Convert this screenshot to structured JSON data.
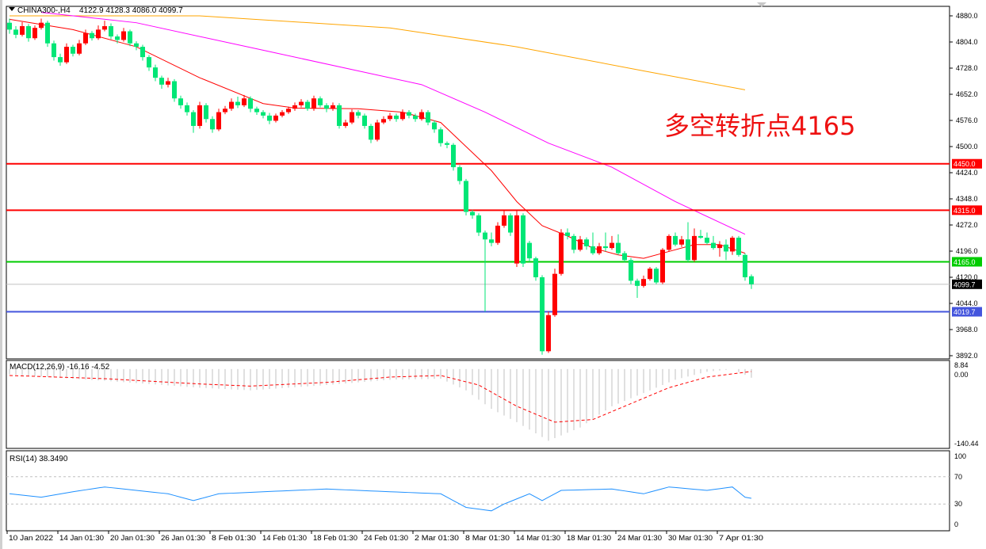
{
  "chart_data": {
    "type": "candlestick",
    "symbol_header": "CHINA300-,H4",
    "ohlc_header": "4122.9 4128.3 4086.0 4099.7",
    "annotation": "多空转折点4165",
    "colors": {
      "up": "#ff0000",
      "down": "#00e676",
      "ma_fast": "#ff0000",
      "ma_mid": "#ff00ff",
      "ma_slow": "#ffa500",
      "macd_hist": "#c0c0c0",
      "macd_signal": "#ff0000",
      "rsi": "#1e90ff"
    },
    "price_axis": {
      "ticks": [
        4880,
        4804,
        4728,
        4652,
        4576,
        4500,
        4424,
        4348,
        4272,
        4196,
        4120,
        4044,
        3968,
        3892
      ],
      "range": [
        3892,
        4880
      ]
    },
    "levels": [
      {
        "price": 4450.0,
        "label": "4450.0",
        "color": "#ff0000"
      },
      {
        "price": 4315.0,
        "label": "4315.0",
        "color": "#ff0000"
      },
      {
        "price": 4165.0,
        "label": "4165.0",
        "color": "#00cc00"
      },
      {
        "price": 4099.7,
        "label": "4099.7",
        "color": "#c0c0c0",
        "tag_color": "#000000"
      },
      {
        "price": 4019.7,
        "label": "4019.7",
        "color": "#4455dd"
      }
    ],
    "time_labels": [
      "10 Jan 2022",
      "14 Jan 01:30",
      "20 Jan 01:30",
      "26 Jan 01:30",
      "8 Feb 01:30",
      "14 Feb 01:30",
      "18 Feb 01:30",
      "24 Feb 01:30",
      "2 Mar 01:30",
      "8 Mar 01:30",
      "14 Mar 01:30",
      "18 Mar 01:30",
      "24 Mar 01:30",
      "30 Mar 01:30",
      "7 Apr 01:30"
    ],
    "candles": [
      [
        4860,
        4872,
        4828,
        4840
      ],
      [
        4840,
        4850,
        4815,
        4825
      ],
      [
        4825,
        4862,
        4820,
        4850
      ],
      [
        4850,
        4856,
        4805,
        4815
      ],
      [
        4815,
        4852,
        4810,
        4845
      ],
      [
        4845,
        4872,
        4840,
        4860
      ],
      [
        4860,
        4866,
        4790,
        4800
      ],
      [
        4800,
        4808,
        4750,
        4760
      ],
      [
        4760,
        4770,
        4735,
        4745
      ],
      [
        4745,
        4800,
        4740,
        4790
      ],
      [
        4790,
        4796,
        4762,
        4770
      ],
      [
        4770,
        4810,
        4765,
        4800
      ],
      [
        4800,
        4840,
        4795,
        4830
      ],
      [
        4830,
        4836,
        4808,
        4815
      ],
      [
        4815,
        4852,
        4810,
        4840
      ],
      [
        4840,
        4866,
        4835,
        4850
      ],
      [
        4850,
        4858,
        4812,
        4820
      ],
      [
        4820,
        4826,
        4800,
        4810
      ],
      [
        4810,
        4845,
        4805,
        4835
      ],
      [
        4835,
        4840,
        4792,
        4800
      ],
      [
        4800,
        4806,
        4780,
        4790
      ],
      [
        4790,
        4796,
        4750,
        4760
      ],
      [
        4760,
        4766,
        4720,
        4730
      ],
      [
        4730,
        4738,
        4690,
        4700
      ],
      [
        4700,
        4706,
        4668,
        4680
      ],
      [
        4680,
        4700,
        4672,
        4690
      ],
      [
        4690,
        4696,
        4630,
        4640
      ],
      [
        4640,
        4648,
        4610,
        4620
      ],
      [
        4620,
        4628,
        4590,
        4600
      ],
      [
        4600,
        4606,
        4540,
        4560
      ],
      [
        4560,
        4630,
        4552,
        4620
      ],
      [
        4620,
        4626,
        4570,
        4580
      ],
      [
        4580,
        4588,
        4540,
        4550
      ],
      [
        4550,
        4610,
        4545,
        4600
      ],
      [
        4600,
        4618,
        4594,
        4610
      ],
      [
        4610,
        4640,
        4604,
        4630
      ],
      [
        4630,
        4645,
        4612,
        4620
      ],
      [
        4620,
        4650,
        4615,
        4640
      ],
      [
        4640,
        4646,
        4600,
        4610
      ],
      [
        4610,
        4616,
        4592,
        4600
      ],
      [
        4600,
        4606,
        4582,
        4590
      ],
      [
        4590,
        4598,
        4565,
        4575
      ],
      [
        4575,
        4596,
        4570,
        4590
      ],
      [
        4590,
        4606,
        4585,
        4600
      ],
      [
        4600,
        4616,
        4595,
        4610
      ],
      [
        4610,
        4628,
        4604,
        4620
      ],
      [
        4620,
        4638,
        4614,
        4630
      ],
      [
        4630,
        4636,
        4604,
        4610
      ],
      [
        4610,
        4648,
        4604,
        4640
      ],
      [
        4640,
        4646,
        4614,
        4620
      ],
      [
        4620,
        4626,
        4600,
        4610
      ],
      [
        4610,
        4628,
        4604,
        4620
      ],
      [
        4620,
        4626,
        4552,
        4560
      ],
      [
        4560,
        4578,
        4554,
        4570
      ],
      [
        4570,
        4608,
        4565,
        4600
      ],
      [
        4600,
        4606,
        4582,
        4590
      ],
      [
        4590,
        4596,
        4552,
        4560
      ],
      [
        4560,
        4566,
        4510,
        4520
      ],
      [
        4520,
        4578,
        4515,
        4570
      ],
      [
        4570,
        4588,
        4565,
        4580
      ],
      [
        4580,
        4598,
        4574,
        4590
      ],
      [
        4590,
        4596,
        4572,
        4580
      ],
      [
        4580,
        4608,
        4575,
        4600
      ],
      [
        4600,
        4606,
        4582,
        4590
      ],
      [
        4590,
        4596,
        4572,
        4580
      ],
      [
        4580,
        4608,
        4575,
        4600
      ],
      [
        4600,
        4606,
        4562,
        4570
      ],
      [
        4570,
        4576,
        4540,
        4550
      ],
      [
        4550,
        4556,
        4500,
        4510
      ],
      [
        4510,
        4515,
        4495,
        4505
      ],
      [
        4505,
        4510,
        4430,
        4440
      ],
      [
        4440,
        4446,
        4390,
        4400
      ],
      [
        4400,
        4406,
        4300,
        4310
      ],
      [
        4310,
        4316,
        4290,
        4300
      ],
      [
        4300,
        4306,
        4240,
        4250
      ],
      [
        4250,
        4256,
        4020,
        4230
      ],
      [
        4230,
        4250,
        4210,
        4220
      ],
      [
        4220,
        4280,
        4214,
        4270
      ],
      [
        4270,
        4315,
        4264,
        4300
      ],
      [
        4300,
        4306,
        4240,
        4250
      ],
      [
        4160,
        4315,
        4150,
        4300
      ],
      [
        4300,
        4306,
        4150,
        4160
      ],
      [
        4220,
        4226,
        4165,
        4175
      ],
      [
        4175,
        4180,
        4110,
        4120
      ],
      [
        4120,
        4126,
        3895,
        3905
      ],
      [
        3905,
        4020,
        3900,
        4010
      ],
      [
        4010,
        4145,
        4005,
        4130
      ],
      [
        4130,
        4260,
        4125,
        4250
      ],
      [
        4250,
        4262,
        4230,
        4240
      ],
      [
        4240,
        4246,
        4190,
        4200
      ],
      [
        4200,
        4240,
        4195,
        4230
      ],
      [
        4230,
        4236,
        4200,
        4210
      ],
      [
        4210,
        4250,
        4185,
        4190
      ],
      [
        4190,
        4220,
        4185,
        4210
      ],
      [
        4210,
        4250,
        4195,
        4205
      ],
      [
        4205,
        4240,
        4200,
        4220
      ],
      [
        4220,
        4245,
        4185,
        4190
      ],
      [
        4190,
        4196,
        4165,
        4170
      ],
      [
        4170,
        4176,
        4100,
        4110
      ],
      [
        4110,
        4116,
        4060,
        4095
      ],
      [
        4095,
        4125,
        4090,
        4115
      ],
      [
        4115,
        4150,
        4110,
        4145
      ],
      [
        4145,
        4150,
        4100,
        4105
      ],
      [
        4105,
        4205,
        4100,
        4200
      ],
      [
        4200,
        4245,
        4195,
        4240
      ],
      [
        4240,
        4250,
        4210,
        4215
      ],
      [
        4215,
        4240,
        4208,
        4230
      ],
      [
        4230,
        4280,
        4165,
        4170
      ],
      [
        4170,
        4262,
        4165,
        4240
      ],
      [
        4240,
        4258,
        4232,
        4235
      ],
      [
        4235,
        4250,
        4215,
        4220
      ],
      [
        4220,
        4240,
        4200,
        4205
      ],
      [
        4205,
        4225,
        4180,
        4215
      ],
      [
        4215,
        4230,
        4170,
        4195
      ],
      [
        4195,
        4240,
        4185,
        4235
      ],
      [
        4235,
        4240,
        4180,
        4185
      ],
      [
        4185,
        4190,
        4110,
        4120
      ],
      [
        4122.9,
        4128.3,
        4086.0,
        4099.7
      ]
    ],
    "ma_fast": [
      [
        0,
        4870
      ],
      [
        10,
        4840
      ],
      [
        20,
        4790
      ],
      [
        30,
        4700
      ],
      [
        40,
        4625
      ],
      [
        45,
        4612
      ],
      [
        55,
        4610
      ],
      [
        62,
        4600
      ],
      [
        68,
        4570
      ],
      [
        72,
        4500
      ],
      [
        76,
        4430
      ],
      [
        80,
        4340
      ],
      [
        84,
        4270
      ],
      [
        88,
        4240
      ],
      [
        92,
        4205
      ],
      [
        96,
        4185
      ],
      [
        100,
        4175
      ],
      [
        104,
        4195
      ],
      [
        108,
        4215
      ],
      [
        112,
        4215
      ],
      [
        116,
        4190
      ]
    ],
    "ma_mid": [
      [
        5,
        4890
      ],
      [
        20,
        4860
      ],
      [
        40,
        4780
      ],
      [
        55,
        4720
      ],
      [
        65,
        4680
      ],
      [
        75,
        4600
      ],
      [
        85,
        4510
      ],
      [
        95,
        4440
      ],
      [
        105,
        4340
      ],
      [
        116,
        4245
      ]
    ],
    "ma_slow": [
      [
        0,
        4880
      ],
      [
        30,
        4880
      ],
      [
        60,
        4845
      ],
      [
        80,
        4790
      ],
      [
        100,
        4720
      ],
      [
        116,
        4665
      ]
    ],
    "macd": {
      "label": "MACD(12,26,9) -16.16 -4.52",
      "axis_labels": [
        "8.84",
        "0.00",
        "-140.44"
      ],
      "range": [
        -140.44,
        8.84
      ],
      "histogram": [
        [
          0,
          -10
        ],
        [
          15,
          -22
        ],
        [
          30,
          -35
        ],
        [
          38,
          -40
        ],
        [
          50,
          -30
        ],
        [
          60,
          -20
        ],
        [
          68,
          -18
        ],
        [
          72,
          -40
        ],
        [
          76,
          -75
        ],
        [
          80,
          -100
        ],
        [
          85,
          -135
        ],
        [
          90,
          -110
        ],
        [
          95,
          -70
        ],
        [
          100,
          -45
        ],
        [
          105,
          -20
        ],
        [
          110,
          -5
        ],
        [
          114,
          0
        ],
        [
          117,
          -16.16
        ]
      ],
      "signal": [
        [
          0,
          -12
        ],
        [
          15,
          -18
        ],
        [
          30,
          -28
        ],
        [
          38,
          -32
        ],
        [
          50,
          -25
        ],
        [
          60,
          -15
        ],
        [
          68,
          -12
        ],
        [
          74,
          -30
        ],
        [
          80,
          -70
        ],
        [
          86,
          -100
        ],
        [
          92,
          -95
        ],
        [
          98,
          -65
        ],
        [
          104,
          -35
        ],
        [
          110,
          -15
        ],
        [
          117,
          -4.52
        ]
      ]
    },
    "rsi": {
      "label": "RSI(14) 38.3490",
      "axis_labels": [
        "100",
        "70",
        "30",
        "0"
      ],
      "levels": [
        70,
        30
      ],
      "values": [
        [
          0,
          45
        ],
        [
          5,
          40
        ],
        [
          10,
          48
        ],
        [
          15,
          55
        ],
        [
          20,
          50
        ],
        [
          25,
          45
        ],
        [
          29,
          35
        ],
        [
          33,
          45
        ],
        [
          40,
          48
        ],
        [
          50,
          52
        ],
        [
          60,
          48
        ],
        [
          68,
          45
        ],
        [
          72,
          25
        ],
        [
          76,
          20
        ],
        [
          78,
          30
        ],
        [
          82,
          45
        ],
        [
          84,
          35
        ],
        [
          87,
          50
        ],
        [
          95,
          52
        ],
        [
          100,
          45
        ],
        [
          104,
          55
        ],
        [
          110,
          50
        ],
        [
          114,
          55
        ],
        [
          116,
          40
        ],
        [
          117,
          38.35
        ]
      ]
    }
  }
}
